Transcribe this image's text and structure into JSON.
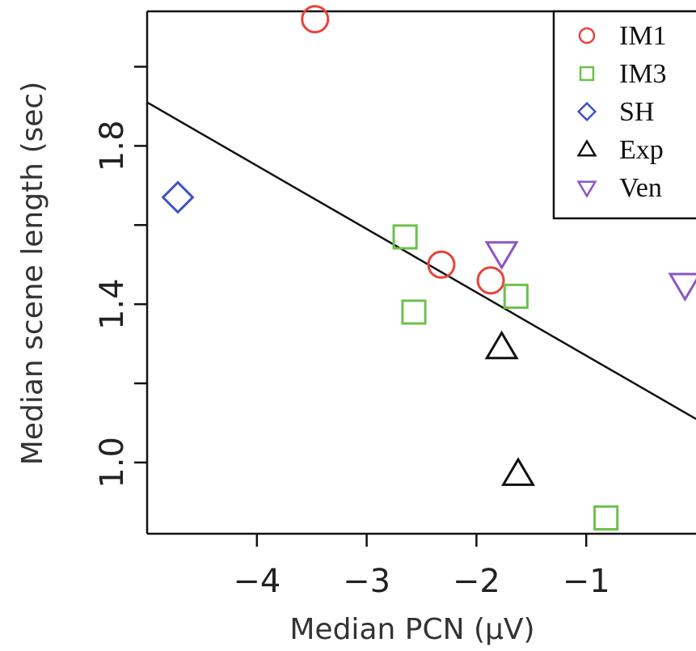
{
  "chart_data": {
    "type": "scatter",
    "xlabel": "Median PCN (μV)",
    "ylabel": "Median scene length (sec)",
    "xlim": [
      -5.0,
      0.0
    ],
    "ylim": [
      0.82,
      2.14
    ],
    "x_ticks": [
      {
        "value": -4,
        "label": "−4"
      },
      {
        "value": -3,
        "label": "−3"
      },
      {
        "value": -2,
        "label": "−2"
      },
      {
        "value": -1,
        "label": "−1"
      }
    ],
    "y_ticks": [
      {
        "value": 1.0,
        "label": "1.0"
      },
      {
        "value": 1.2,
        "label": ""
      },
      {
        "value": 1.4,
        "label": "1.4"
      },
      {
        "value": 1.6,
        "label": ""
      },
      {
        "value": 1.8,
        "label": "1.8"
      },
      {
        "value": 2.0,
        "label": ""
      }
    ],
    "grid": false,
    "legend_position": "top-right",
    "series": [
      {
        "name": "IM1",
        "marker": "circle",
        "color": "#e8423b",
        "points": [
          [
            -3.47,
            2.12
          ],
          [
            -2.32,
            1.5
          ],
          [
            -1.87,
            1.46
          ]
        ]
      },
      {
        "name": "IM3",
        "marker": "square",
        "color": "#6cc24a",
        "points": [
          [
            -2.65,
            1.57
          ],
          [
            -2.57,
            1.38
          ],
          [
            -1.64,
            1.42
          ],
          [
            -0.82,
            0.86
          ]
        ]
      },
      {
        "name": "SH",
        "marker": "diamond",
        "color": "#3f51c6",
        "points": [
          [
            -4.72,
            1.67
          ]
        ]
      },
      {
        "name": "Exp",
        "marker": "triangle-up",
        "color": "#111111",
        "points": [
          [
            -1.77,
            1.29
          ],
          [
            -1.62,
            0.97
          ]
        ]
      },
      {
        "name": "Ven",
        "marker": "triangle-down",
        "color": "#8b55c6",
        "points": [
          [
            -1.77,
            1.53
          ],
          [
            -0.1,
            1.45
          ]
        ]
      }
    ],
    "fit_line": {
      "color": "#111111",
      "points": [
        [
          -5.0,
          1.91
        ],
        [
          0.0,
          1.11
        ]
      ]
    }
  }
}
